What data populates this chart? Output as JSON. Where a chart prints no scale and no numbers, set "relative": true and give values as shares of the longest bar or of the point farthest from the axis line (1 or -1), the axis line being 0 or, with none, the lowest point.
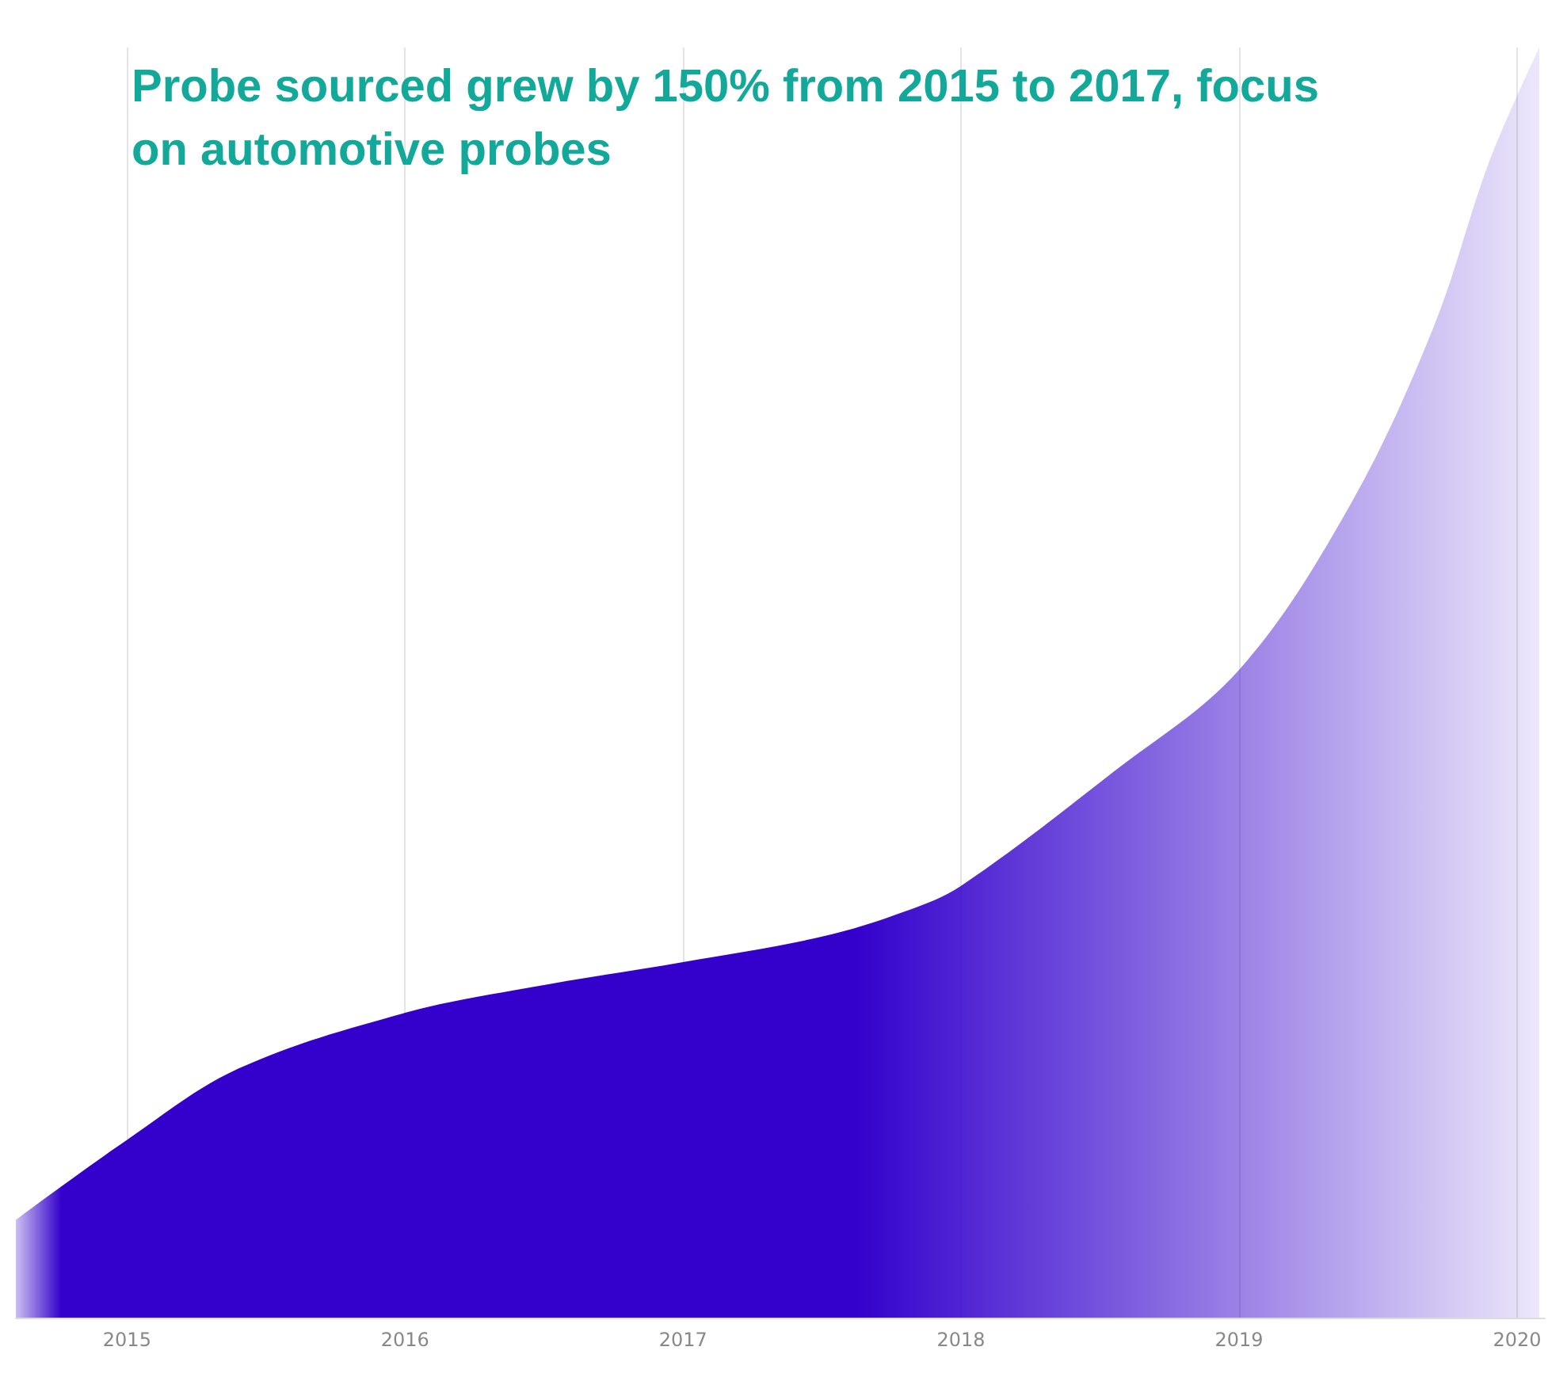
{
  "chart_data": {
    "type": "area",
    "title": "Probe sourced grew by 150% from 2015 to 2017, focus on automotive probes",
    "relative": true,
    "x": [
      2014.6,
      2015,
      2015.4,
      2016,
      2016.45,
      2017,
      2017.5,
      2017.8,
      2018,
      2018.55,
      2019,
      2019.4,
      2019.7,
      2019.9,
      2020.08
    ],
    "series": [
      {
        "color": "#3300cc",
        "values": [
          0.077,
          0.14,
          0.196,
          0.24,
          0.26,
          0.28,
          0.3,
          0.32,
          0.34,
          0.43,
          0.51,
          0.64,
          0.78,
          0.91,
          1.0
        ]
      }
    ],
    "xlim": [
      2014.6,
      2020.1
    ],
    "xticks": [
      2015,
      2016,
      2017,
      2018,
      2019,
      2020
    ],
    "grid": "x"
  }
}
